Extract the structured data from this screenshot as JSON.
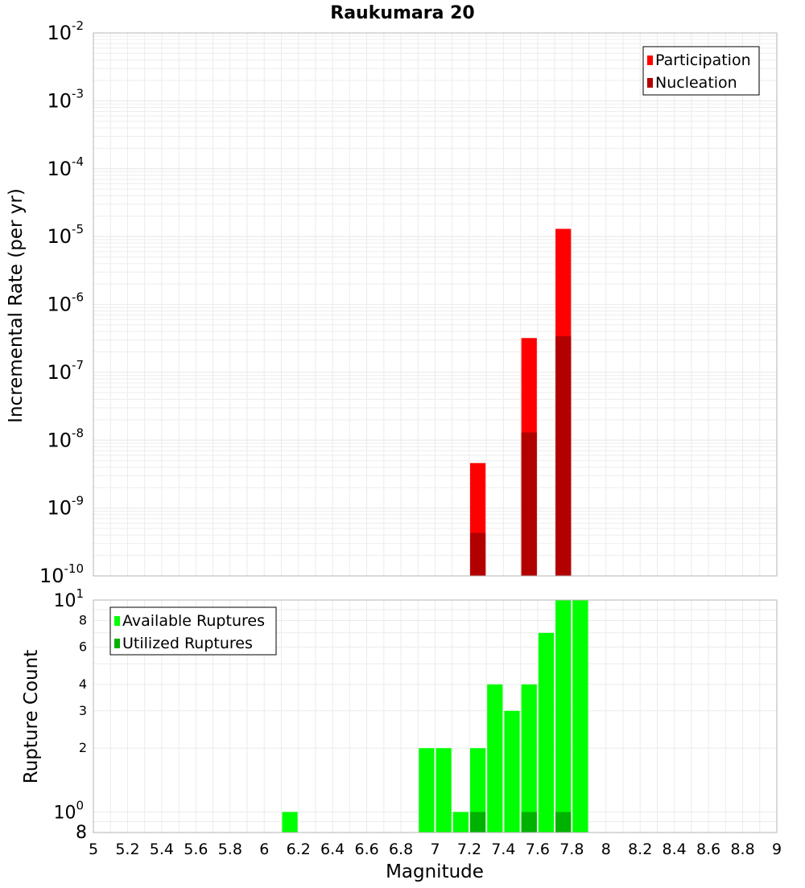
{
  "chart_data": [
    {
      "type": "bar",
      "title": "Raukumara 20",
      "ylabel": "Incremental Rate (per yr)",
      "xlabel": "",
      "xlim": [
        5,
        9
      ],
      "ylim": [
        1e-10,
        0.01
      ],
      "yscale": "log",
      "ytick_labels": [
        {
          "base": "10",
          "exp": "-2"
        },
        {
          "base": "10",
          "exp": "-3"
        },
        {
          "base": "10",
          "exp": "-4"
        },
        {
          "base": "10",
          "exp": "-5"
        },
        {
          "base": "10",
          "exp": "-6"
        },
        {
          "base": "10",
          "exp": "-7"
        },
        {
          "base": "10",
          "exp": "-8"
        },
        {
          "base": "10",
          "exp": "-9"
        },
        {
          "base": "10",
          "exp": "-10"
        }
      ],
      "legend": {
        "placement": "top-right"
      },
      "series": [
        {
          "name": "Participation",
          "color": "#ff0000",
          "x": [
            7.25,
            7.55,
            7.75
          ],
          "values": [
            4.6e-09,
            3.2e-07,
            1.3e-05
          ]
        },
        {
          "name": "Nucleation",
          "color": "#b20000",
          "x": [
            7.25,
            7.55,
            7.75
          ],
          "values": [
            4.3e-10,
            1.3e-08,
            3.4e-07
          ]
        }
      ],
      "grid": true
    },
    {
      "type": "bar",
      "title": "",
      "ylabel": "Rupture Count",
      "xlabel": "Magnitude",
      "xlim": [
        5,
        9
      ],
      "ylim": [
        0.8,
        10
      ],
      "yscale": "log",
      "x_tick_labels": [
        "5",
        "5.2",
        "5.4",
        "5.6",
        "5.8",
        "6",
        "6.2",
        "6.4",
        "6.6",
        "6.8",
        "7",
        "7.2",
        "7.4",
        "7.6",
        "7.8",
        "8",
        "8.2",
        "8.4",
        "8.6",
        "8.8",
        "9"
      ],
      "ytick_labels": [
        {
          "base": "10",
          "exp": "1"
        },
        {
          "base": "8",
          "exp": ""
        },
        {
          "base": "6",
          "exp": ""
        },
        {
          "base": "4",
          "exp": ""
        },
        {
          "base": "3",
          "exp": ""
        },
        {
          "base": "2",
          "exp": ""
        },
        {
          "base": "10",
          "exp": "0"
        },
        {
          "base": "8",
          "exp": ""
        }
      ],
      "legend": {
        "placement": "top-left"
      },
      "series": [
        {
          "name": "Available Ruptures",
          "color": "#00ff00",
          "x": [
            6.15,
            6.95,
            7.05,
            7.15,
            7.25,
            7.35,
            7.45,
            7.55,
            7.65,
            7.75,
            7.85
          ],
          "values": [
            1,
            2,
            2,
            1,
            2,
            4,
            3,
            4,
            7,
            10,
            10
          ]
        },
        {
          "name": "Utilized Ruptures",
          "color": "#00b200",
          "x": [
            7.25,
            7.55,
            7.75
          ],
          "values": [
            1,
            1,
            1
          ]
        }
      ],
      "grid": true
    }
  ]
}
